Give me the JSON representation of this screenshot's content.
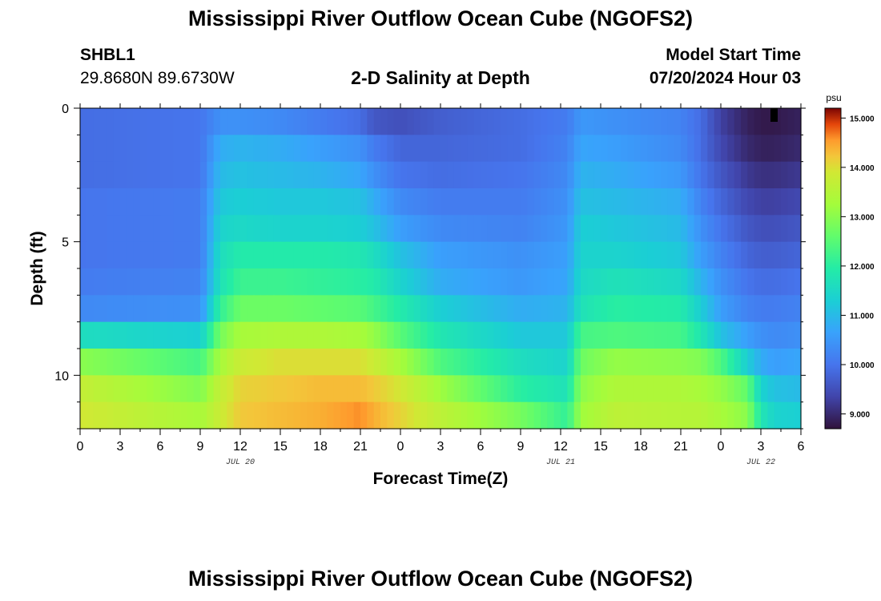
{
  "header": {
    "title": "Mississippi River Outflow Ocean Cube (NGOFS2)",
    "station": "SHBL1",
    "coordinates": "29.8680N  89.6730W",
    "subtitle": "2-D Salinity at Depth",
    "model_start_label": "Model Start Time",
    "model_start_value": "07/20/2024 Hour 03"
  },
  "footer": {
    "title": "Mississippi River Outflow Ocean Cube (NGOFS2)"
  },
  "chart_data": {
    "type": "heatmap",
    "title": "2-D Salinity at Depth",
    "xlabel": "Forecast Time(Z)",
    "ylabel": "Depth (ft)",
    "x_tick_labels": [
      "0",
      "3",
      "6",
      "9",
      "12",
      "15",
      "18",
      "21",
      "0",
      "3",
      "6",
      "9",
      "12",
      "15",
      "18",
      "21",
      "0",
      "3",
      "6"
    ],
    "x_range_hours": [
      0,
      54
    ],
    "date_labels": [
      {
        "label": "JUL 20",
        "hour": 12
      },
      {
        "label": "JUL 21",
        "hour": 36
      },
      {
        "label": "JUL 22",
        "hour": 51
      }
    ],
    "y_range_ft": [
      0,
      12
    ],
    "y_ticks": [
      0,
      5,
      10
    ],
    "colorbar": {
      "unit": "psu",
      "min": 8.7,
      "max": 15.2,
      "tick_values": [
        9,
        10,
        11,
        12,
        13,
        14,
        15
      ],
      "tick_labels": [
        "9.000",
        "10.000",
        "11.000",
        "12.000",
        "13.000",
        "14.000",
        "15.000"
      ],
      "colormap": "turbo"
    },
    "depth_levels_ft": [
      0.5,
      1.5,
      2.5,
      3.5,
      4.5,
      5.5,
      6.5,
      7.5,
      8.5,
      9.5,
      10.5,
      11.5
    ],
    "time_knots_hours": [
      0,
      9,
      10.5,
      12,
      15,
      18,
      21,
      22,
      24,
      27,
      33,
      36.5,
      37.5,
      40,
      45,
      46.5,
      48,
      50,
      51,
      52,
      54
    ],
    "salinity_psu": [
      [
        9.9,
        10.0,
        10.4,
        10.4,
        10.3,
        10.1,
        9.9,
        9.6,
        9.5,
        9.7,
        9.9,
        10.1,
        10.5,
        10.4,
        10.2,
        9.9,
        9.3,
        8.9,
        8.8,
        8.8,
        8.9
      ],
      [
        9.9,
        10.0,
        10.8,
        10.9,
        10.8,
        10.6,
        10.4,
        10.1,
        9.8,
        9.8,
        9.9,
        10.2,
        10.7,
        10.6,
        10.3,
        9.9,
        9.4,
        9.0,
        8.9,
        8.9,
        9.0
      ],
      [
        9.9,
        10.0,
        11.0,
        11.1,
        11.0,
        10.9,
        10.7,
        10.4,
        10.0,
        9.9,
        10.0,
        10.3,
        10.9,
        10.8,
        10.5,
        10.0,
        9.6,
        9.2,
        9.1,
        9.1,
        9.2
      ],
      [
        10.0,
        10.1,
        11.2,
        11.3,
        11.2,
        11.2,
        11.1,
        10.8,
        10.3,
        10.1,
        10.1,
        10.4,
        11.1,
        11.0,
        10.8,
        10.2,
        9.8,
        9.4,
        9.3,
        9.3,
        9.4
      ],
      [
        10.0,
        10.1,
        11.4,
        11.5,
        11.4,
        11.4,
        11.3,
        11.1,
        10.6,
        10.3,
        10.2,
        10.5,
        11.3,
        11.2,
        11.0,
        10.4,
        10.0,
        9.6,
        9.5,
        9.5,
        9.6
      ],
      [
        10.0,
        10.1,
        11.6,
        11.9,
        11.9,
        11.9,
        11.8,
        11.6,
        11.1,
        10.6,
        10.4,
        10.6,
        11.4,
        11.4,
        11.2,
        10.6,
        10.2,
        9.8,
        9.7,
        9.7,
        9.8
      ],
      [
        10.1,
        10.2,
        11.7,
        12.2,
        12.2,
        12.1,
        12.0,
        11.9,
        11.4,
        10.8,
        10.5,
        10.7,
        11.5,
        11.7,
        11.5,
        10.9,
        10.4,
        10.0,
        9.9,
        9.9,
        10.0
      ],
      [
        10.3,
        10.4,
        12.1,
        12.7,
        12.7,
        12.6,
        12.5,
        12.3,
        11.9,
        11.3,
        10.8,
        10.9,
        11.7,
        12.0,
        11.9,
        11.3,
        10.6,
        10.2,
        10.1,
        10.1,
        10.2
      ],
      [
        11.6,
        11.3,
        12.8,
        13.3,
        13.4,
        13.4,
        13.3,
        13.1,
        12.5,
        11.8,
        11.2,
        11.2,
        12.3,
        12.4,
        12.3,
        11.8,
        11.1,
        10.6,
        10.4,
        10.3,
        10.4
      ],
      [
        13.0,
        12.3,
        13.3,
        13.8,
        14.0,
        14.0,
        14.0,
        13.8,
        13.3,
        12.4,
        11.6,
        11.4,
        12.7,
        13.1,
        13.0,
        12.9,
        12.4,
        11.3,
        10.8,
        10.6,
        10.7
      ],
      [
        13.7,
        12.9,
        13.7,
        14.1,
        14.2,
        14.3,
        14.3,
        14.2,
        13.9,
        13.2,
        12.0,
        11.7,
        13.0,
        13.4,
        13.4,
        13.3,
        13.1,
        12.6,
        11.4,
        11.1,
        11.0
      ],
      [
        13.9,
        13.3,
        13.8,
        14.2,
        14.3,
        14.4,
        14.6,
        14.4,
        14.1,
        13.6,
        12.8,
        12.1,
        13.2,
        13.6,
        13.5,
        13.5,
        13.3,
        13.0,
        11.8,
        11.4,
        11.3
      ]
    ]
  }
}
